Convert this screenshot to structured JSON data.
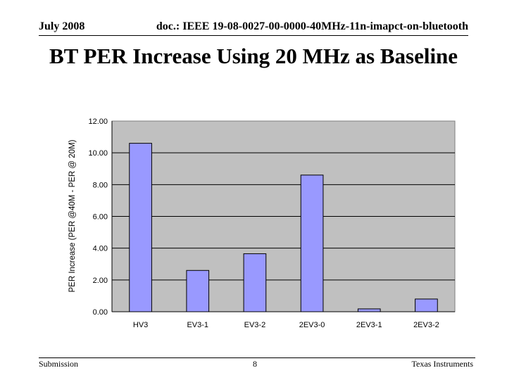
{
  "header": {
    "date": "July 2008",
    "doc": "doc.: IEEE 19-08-0027-00-0000-40MHz-11n-imapct-on-bluetooth"
  },
  "slide": {
    "title": "BT PER Increase Using 20 MHz as Baseline"
  },
  "chart_data": {
    "type": "bar",
    "title": "",
    "xlabel": "",
    "ylabel": "PER Increase (PER @40M - PER @ 20M)",
    "categories": [
      "HV3",
      "EV3-1",
      "EV3-2",
      "2EV3-0",
      "2EV3-1",
      "2EV3-2"
    ],
    "values": [
      10.6,
      2.6,
      3.65,
      8.6,
      0.18,
      0.8
    ],
    "ylim": [
      0,
      12
    ],
    "yticks": [
      "0.00",
      "2.00",
      "4.00",
      "6.00",
      "8.00",
      "10.00",
      "12.00"
    ],
    "grid": true,
    "legend": "none",
    "colors": {
      "bar": "#9999ff",
      "plot_bg": "#c0c0c0"
    }
  },
  "footer": {
    "left": "Submission",
    "page": "8",
    "right": "Texas Instruments"
  }
}
